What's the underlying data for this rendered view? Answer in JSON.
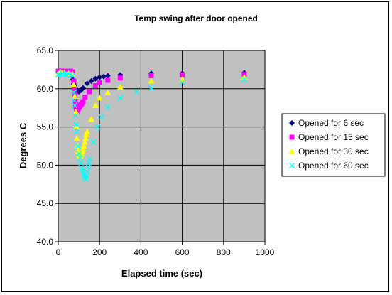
{
  "chart_data": {
    "type": "scatter",
    "title": "Temp swing after door opened",
    "xlabel": "Elapsed time (sec)",
    "ylabel": "Degrees C",
    "xlim": [
      0,
      1000
    ],
    "ylim": [
      40,
      65
    ],
    "xticks": [
      0,
      200,
      400,
      600,
      800,
      1000
    ],
    "xtick_labels": [
      "0",
      "200",
      "400",
      "600",
      "800",
      "1000"
    ],
    "yticks": [
      40,
      45,
      50,
      55,
      60,
      65
    ],
    "ytick_labels": [
      "40.0",
      "45.0",
      "50.0",
      "55.0",
      "60.0",
      "65.0"
    ],
    "grid": true,
    "plot_background": "#c0c0c0",
    "legend_position": "right",
    "series": [
      {
        "name": "Opened for 6 sec",
        "marker": "diamond",
        "color": "#000080",
        "points": [
          [
            0,
            62.2
          ],
          [
            10,
            62.3
          ],
          [
            20,
            62.2
          ],
          [
            30,
            62.2
          ],
          [
            40,
            62.1
          ],
          [
            50,
            62.1
          ],
          [
            60,
            62.0
          ],
          [
            70,
            61.2
          ],
          [
            75,
            60.6
          ],
          [
            80,
            60.3
          ],
          [
            85,
            60.0
          ],
          [
            90,
            59.8
          ],
          [
            100,
            59.6
          ],
          [
            110,
            59.8
          ],
          [
            120,
            60.1
          ],
          [
            140,
            60.7
          ],
          [
            160,
            61.0
          ],
          [
            180,
            61.3
          ],
          [
            200,
            61.5
          ],
          [
            220,
            61.6
          ],
          [
            240,
            61.7
          ],
          [
            300,
            61.8
          ],
          [
            450,
            62.0
          ],
          [
            600,
            62.0
          ],
          [
            900,
            62.1
          ]
        ]
      },
      {
        "name": "Opened for 15 sec",
        "marker": "square",
        "color": "#ff00ff",
        "points": [
          [
            0,
            62.3
          ],
          [
            10,
            62.3
          ],
          [
            20,
            62.3
          ],
          [
            30,
            62.3
          ],
          [
            40,
            62.2
          ],
          [
            50,
            62.3
          ],
          [
            60,
            62.3
          ],
          [
            70,
            62.2
          ],
          [
            75,
            61.0
          ],
          [
            78,
            60.0
          ],
          [
            80,
            59.3
          ],
          [
            82,
            58.6
          ],
          [
            84,
            58.0
          ],
          [
            86,
            57.6
          ],
          [
            88,
            57.3
          ],
          [
            90,
            57.0
          ],
          [
            94,
            57.2
          ],
          [
            98,
            57.4
          ],
          [
            102,
            57.6
          ],
          [
            106,
            57.8
          ],
          [
            110,
            57.9
          ],
          [
            115,
            58.1
          ],
          [
            120,
            58.3
          ],
          [
            130,
            58.9
          ],
          [
            150,
            59.6
          ],
          [
            180,
            60.4
          ],
          [
            200,
            60.8
          ],
          [
            240,
            61.1
          ],
          [
            300,
            61.4
          ],
          [
            450,
            61.7
          ],
          [
            600,
            61.8
          ],
          [
            900,
            61.9
          ]
        ]
      },
      {
        "name": "Opened for 30 sec",
        "marker": "triangle",
        "color": "#ffff00",
        "points": [
          [
            0,
            62.0
          ],
          [
            10,
            62.2
          ],
          [
            20,
            62.1
          ],
          [
            30,
            62.1
          ],
          [
            40,
            61.9
          ],
          [
            50,
            62.0
          ],
          [
            60,
            61.9
          ],
          [
            70,
            61.9
          ],
          [
            75,
            60.5
          ],
          [
            80,
            59.0
          ],
          [
            85,
            57.0
          ],
          [
            88,
            55.0
          ],
          [
            90,
            53.5
          ],
          [
            93,
            52.5
          ],
          [
            96,
            51.8
          ],
          [
            100,
            51.4
          ],
          [
            104,
            51.2
          ],
          [
            108,
            51.3
          ],
          [
            112,
            51.5
          ],
          [
            116,
            51.8
          ],
          [
            120,
            52.1
          ],
          [
            124,
            52.5
          ],
          [
            128,
            53.0
          ],
          [
            132,
            53.5
          ],
          [
            136,
            54.0
          ],
          [
            140,
            54.4
          ],
          [
            160,
            56.0
          ],
          [
            180,
            57.8
          ],
          [
            200,
            58.8
          ],
          [
            240,
            59.5
          ],
          [
            300,
            60.2
          ],
          [
            450,
            61.0
          ],
          [
            600,
            61.2
          ],
          [
            900,
            61.5
          ]
        ]
      },
      {
        "name": "Opened for 60 sec",
        "marker": "x",
        "color": "#00ffff",
        "points": [
          [
            0,
            61.8
          ],
          [
            10,
            61.9
          ],
          [
            20,
            62.0
          ],
          [
            30,
            61.9
          ],
          [
            40,
            61.8
          ],
          [
            50,
            61.9
          ],
          [
            60,
            61.8
          ],
          [
            70,
            61.7
          ],
          [
            75,
            59.5
          ],
          [
            78,
            58.5
          ],
          [
            80,
            57.8
          ],
          [
            83,
            56.5
          ],
          [
            86,
            55.3
          ],
          [
            90,
            54.4
          ],
          [
            95,
            52.5
          ],
          [
            100,
            51.5
          ],
          [
            105,
            51.0
          ],
          [
            110,
            50.3
          ],
          [
            115,
            49.6
          ],
          [
            120,
            49.2
          ],
          [
            124,
            48.8
          ],
          [
            128,
            48.5
          ],
          [
            132,
            48.2
          ],
          [
            136,
            48.6
          ],
          [
            140,
            49.2
          ],
          [
            144,
            49.8
          ],
          [
            148,
            50.3
          ],
          [
            152,
            50.8
          ],
          [
            170,
            53.0
          ],
          [
            190,
            55.0
          ],
          [
            210,
            56.3
          ],
          [
            240,
            57.6
          ],
          [
            300,
            58.8
          ],
          [
            380,
            59.6
          ],
          [
            450,
            60.1
          ],
          [
            600,
            60.8
          ],
          [
            900,
            61.2
          ]
        ]
      }
    ]
  }
}
